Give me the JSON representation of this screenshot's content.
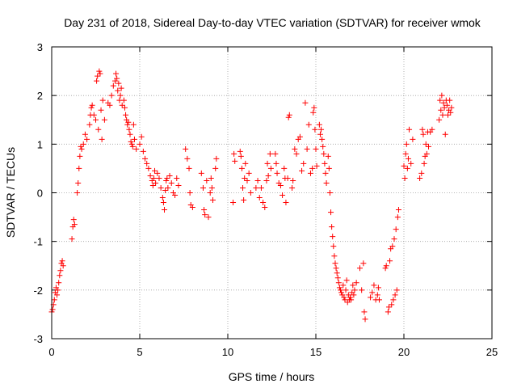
{
  "chart_data": {
    "type": "scatter",
    "title": "Day 231 of 2018, Sidereal Day-to-day VTEC variation (SDTVAR) for receiver wmok",
    "xlabel": "GPS time / hours",
    "ylabel": "SDTVAR / TECUs",
    "xlim": [
      0,
      25
    ],
    "ylim": [
      -3,
      3
    ],
    "xticks": [
      "0",
      "5",
      "10",
      "15",
      "20",
      "25"
    ],
    "yticks": [
      "-3",
      "-2",
      "-1",
      "0",
      "1",
      "2",
      "3"
    ],
    "grid": true,
    "marker": "+",
    "color": "#ff0000",
    "series": [
      {
        "name": "SDTVAR",
        "points": [
          [
            0.0,
            -2.45
          ],
          [
            0.05,
            -2.4
          ],
          [
            0.1,
            -2.3
          ],
          [
            0.15,
            -2.2
          ],
          [
            0.2,
            -2.05
          ],
          [
            0.25,
            -1.95
          ],
          [
            0.3,
            -2.1
          ],
          [
            0.35,
            -2.0
          ],
          [
            0.4,
            -1.85
          ],
          [
            0.45,
            -1.7
          ],
          [
            0.5,
            -1.6
          ],
          [
            0.55,
            -1.45
          ],
          [
            0.6,
            -1.4
          ],
          [
            0.65,
            -1.5
          ],
          [
            1.15,
            -0.95
          ],
          [
            1.2,
            -0.7
          ],
          [
            1.25,
            -0.55
          ],
          [
            1.3,
            -0.65
          ],
          [
            1.45,
            0.0
          ],
          [
            1.5,
            0.2
          ],
          [
            1.55,
            0.5
          ],
          [
            1.6,
            0.75
          ],
          [
            1.65,
            0.95
          ],
          [
            1.7,
            0.9
          ],
          [
            1.8,
            1.0
          ],
          [
            1.9,
            1.2
          ],
          [
            2.0,
            1.1
          ],
          [
            2.15,
            1.4
          ],
          [
            2.2,
            1.6
          ],
          [
            2.25,
            1.75
          ],
          [
            2.3,
            1.8
          ],
          [
            2.4,
            1.6
          ],
          [
            2.5,
            1.5
          ],
          [
            2.55,
            2.3
          ],
          [
            2.6,
            2.4
          ],
          [
            2.65,
            1.3
          ],
          [
            2.7,
            2.5
          ],
          [
            2.75,
            2.45
          ],
          [
            2.8,
            1.7
          ],
          [
            2.85,
            1.1
          ],
          [
            2.9,
            1.9
          ],
          [
            3.0,
            1.5
          ],
          [
            3.2,
            1.85
          ],
          [
            3.3,
            1.8
          ],
          [
            3.4,
            2.0
          ],
          [
            3.5,
            2.2
          ],
          [
            3.6,
            2.3
          ],
          [
            3.65,
            2.45
          ],
          [
            3.7,
            2.35
          ],
          [
            3.75,
            2.1
          ],
          [
            3.8,
            2.25
          ],
          [
            3.85,
            1.9
          ],
          [
            3.9,
            2.0
          ],
          [
            3.95,
            2.15
          ],
          [
            4.0,
            1.8
          ],
          [
            4.1,
            1.9
          ],
          [
            4.15,
            1.75
          ],
          [
            4.2,
            1.6
          ],
          [
            4.25,
            1.5
          ],
          [
            4.3,
            1.4
          ],
          [
            4.35,
            1.45
          ],
          [
            4.4,
            1.3
          ],
          [
            4.45,
            1.2
          ],
          [
            4.5,
            1.05
          ],
          [
            4.55,
            1.0
          ],
          [
            4.6,
            0.95
          ],
          [
            4.65,
            1.4
          ],
          [
            4.7,
            1.1
          ],
          [
            4.8,
            0.9
          ],
          [
            5.0,
            1.0
          ],
          [
            5.1,
            1.15
          ],
          [
            5.2,
            0.85
          ],
          [
            5.3,
            0.7
          ],
          [
            5.4,
            0.6
          ],
          [
            5.5,
            0.5
          ],
          [
            5.6,
            0.35
          ],
          [
            5.7,
            0.25
          ],
          [
            5.75,
            0.15
          ],
          [
            5.8,
            0.3
          ],
          [
            5.85,
            0.45
          ],
          [
            5.9,
            0.2
          ],
          [
            6.0,
            0.4
          ],
          [
            6.1,
            0.3
          ],
          [
            6.2,
            0.1
          ],
          [
            6.3,
            -0.1
          ],
          [
            6.35,
            -0.2
          ],
          [
            6.4,
            -0.35
          ],
          [
            6.45,
            0.05
          ],
          [
            6.5,
            0.25
          ],
          [
            6.55,
            0.3
          ],
          [
            6.6,
            0.1
          ],
          [
            6.7,
            0.35
          ],
          [
            6.8,
            0.2
          ],
          [
            6.9,
            0.0
          ],
          [
            7.0,
            -0.05
          ],
          [
            7.1,
            0.3
          ],
          [
            7.2,
            0.15
          ],
          [
            7.6,
            0.9
          ],
          [
            7.7,
            0.7
          ],
          [
            7.8,
            0.5
          ],
          [
            7.85,
            0.0
          ],
          [
            7.9,
            -0.25
          ],
          [
            8.0,
            -0.3
          ],
          [
            8.5,
            0.4
          ],
          [
            8.6,
            0.1
          ],
          [
            8.65,
            -0.35
          ],
          [
            8.7,
            -0.45
          ],
          [
            8.8,
            0.25
          ],
          [
            8.9,
            -0.5
          ],
          [
            9.0,
            0.0
          ],
          [
            9.05,
            0.3
          ],
          [
            9.1,
            0.1
          ],
          [
            9.15,
            -0.15
          ],
          [
            9.3,
            0.5
          ],
          [
            9.35,
            0.7
          ],
          [
            10.3,
            -0.2
          ],
          [
            10.35,
            0.8
          ],
          [
            10.4,
            0.65
          ],
          [
            10.7,
            0.85
          ],
          [
            10.75,
            0.75
          ],
          [
            10.8,
            0.5
          ],
          [
            10.85,
            0.1
          ],
          [
            10.9,
            -0.15
          ],
          [
            10.95,
            0.3
          ],
          [
            11.0,
            0.6
          ],
          [
            11.1,
            0.25
          ],
          [
            11.2,
            0.4
          ],
          [
            11.3,
            0.0
          ],
          [
            11.6,
            0.1
          ],
          [
            11.7,
            0.25
          ],
          [
            11.8,
            -0.1
          ],
          [
            11.9,
            0.1
          ],
          [
            12.0,
            -0.2
          ],
          [
            12.1,
            -0.3
          ],
          [
            12.2,
            0.25
          ],
          [
            12.25,
            0.6
          ],
          [
            12.3,
            0.35
          ],
          [
            12.4,
            0.8
          ],
          [
            12.45,
            0.5
          ],
          [
            12.7,
            0.8
          ],
          [
            12.75,
            0.6
          ],
          [
            12.8,
            0.4
          ],
          [
            12.9,
            0.2
          ],
          [
            13.0,
            0.15
          ],
          [
            13.1,
            -0.05
          ],
          [
            13.2,
            0.5
          ],
          [
            13.25,
            0.3
          ],
          [
            13.3,
            -0.2
          ],
          [
            13.4,
            0.3
          ],
          [
            13.45,
            1.55
          ],
          [
            13.5,
            1.6
          ],
          [
            13.65,
            0.1
          ],
          [
            13.7,
            0.25
          ],
          [
            13.8,
            0.9
          ],
          [
            13.9,
            0.8
          ],
          [
            14.0,
            1.1
          ],
          [
            14.1,
            1.15
          ],
          [
            14.2,
            0.45
          ],
          [
            14.3,
            0.6
          ],
          [
            14.4,
            1.85
          ],
          [
            14.5,
            0.9
          ],
          [
            14.6,
            1.4
          ],
          [
            14.7,
            0.4
          ],
          [
            14.8,
            0.5
          ],
          [
            14.85,
            1.65
          ],
          [
            14.9,
            1.75
          ],
          [
            14.95,
            1.3
          ],
          [
            15.0,
            0.9
          ],
          [
            15.05,
            0.55
          ],
          [
            15.2,
            1.4
          ],
          [
            15.25,
            1.2
          ],
          [
            15.3,
            1.3
          ],
          [
            15.35,
            1.1
          ],
          [
            15.4,
            0.95
          ],
          [
            15.45,
            0.8
          ],
          [
            15.5,
            0.6
          ],
          [
            15.55,
            0.4
          ],
          [
            15.6,
            0.2
          ],
          [
            15.7,
            0.75
          ],
          [
            15.75,
            0.5
          ],
          [
            15.8,
            0.0
          ],
          [
            15.85,
            -0.4
          ],
          [
            15.9,
            -0.7
          ],
          [
            15.95,
            -0.9
          ],
          [
            16.0,
            -1.1
          ],
          [
            16.05,
            -1.3
          ],
          [
            16.1,
            -1.45
          ],
          [
            16.15,
            -1.55
          ],
          [
            16.2,
            -1.65
          ],
          [
            16.25,
            -1.75
          ],
          [
            16.3,
            -1.85
          ],
          [
            16.35,
            -1.95
          ],
          [
            16.4,
            -2.0
          ],
          [
            16.45,
            -2.05
          ],
          [
            16.5,
            -2.1
          ],
          [
            16.55,
            -1.9
          ],
          [
            16.6,
            -2.15
          ],
          [
            16.65,
            -2.2
          ],
          [
            16.7,
            -2.0
          ],
          [
            16.75,
            -1.8
          ],
          [
            16.8,
            -2.25
          ],
          [
            16.85,
            -2.1
          ],
          [
            16.9,
            -2.2
          ],
          [
            16.95,
            -2.15
          ],
          [
            17.0,
            -2.2
          ],
          [
            17.05,
            -2.05
          ],
          [
            17.1,
            -1.9
          ],
          [
            17.15,
            -2.1
          ],
          [
            17.2,
            -2.0
          ],
          [
            17.3,
            -1.85
          ],
          [
            17.5,
            -1.55
          ],
          [
            17.6,
            -2.0
          ],
          [
            17.7,
            -1.45
          ],
          [
            17.75,
            -2.45
          ],
          [
            17.8,
            -2.6
          ],
          [
            18.1,
            -2.15
          ],
          [
            18.2,
            -2.05
          ],
          [
            18.3,
            -1.9
          ],
          [
            18.4,
            -2.2
          ],
          [
            18.5,
            -2.1
          ],
          [
            18.55,
            -1.95
          ],
          [
            18.6,
            -2.2
          ],
          [
            18.95,
            -1.55
          ],
          [
            19.0,
            -1.5
          ],
          [
            19.1,
            -2.45
          ],
          [
            19.15,
            -2.35
          ],
          [
            19.2,
            -1.4
          ],
          [
            19.25,
            -1.15
          ],
          [
            19.3,
            -2.3
          ],
          [
            19.35,
            -1.1
          ],
          [
            19.4,
            -2.2
          ],
          [
            19.45,
            -0.95
          ],
          [
            19.5,
            -2.1
          ],
          [
            19.55,
            -0.75
          ],
          [
            19.6,
            -2.0
          ],
          [
            19.65,
            -0.5
          ],
          [
            19.7,
            -0.35
          ],
          [
            20.0,
            0.55
          ],
          [
            20.05,
            0.3
          ],
          [
            20.1,
            0.8
          ],
          [
            20.15,
            1.0
          ],
          [
            20.2,
            0.5
          ],
          [
            20.25,
            0.7
          ],
          [
            20.3,
            1.3
          ],
          [
            20.4,
            0.6
          ],
          [
            20.5,
            1.1
          ],
          [
            20.9,
            0.3
          ],
          [
            21.0,
            0.4
          ],
          [
            21.05,
            1.3
          ],
          [
            21.1,
            1.2
          ],
          [
            21.15,
            0.6
          ],
          [
            21.2,
            0.75
          ],
          [
            21.25,
            1.0
          ],
          [
            21.3,
            0.8
          ],
          [
            21.35,
            1.25
          ],
          [
            21.4,
            0.95
          ],
          [
            21.5,
            1.25
          ],
          [
            21.6,
            1.3
          ],
          [
            22.0,
            1.5
          ],
          [
            22.05,
            1.9
          ],
          [
            22.1,
            1.7
          ],
          [
            22.15,
            2.0
          ],
          [
            22.2,
            1.6
          ],
          [
            22.25,
            1.85
          ],
          [
            22.3,
            1.75
          ],
          [
            22.35,
            1.2
          ],
          [
            22.4,
            1.9
          ],
          [
            22.45,
            1.8
          ],
          [
            22.5,
            1.6
          ],
          [
            22.55,
            1.7
          ],
          [
            22.6,
            1.9
          ],
          [
            22.65,
            1.65
          ],
          [
            22.7,
            1.75
          ]
        ]
      }
    ]
  }
}
